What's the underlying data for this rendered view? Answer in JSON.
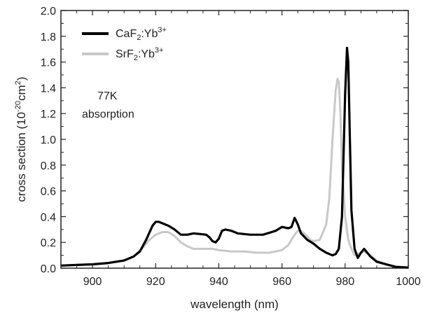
{
  "chart_data": {
    "type": "line",
    "xlabel": "wavelength (nm)",
    "ylabel_parts": {
      "pre": "cross section  (10",
      "exp": "-20",
      "mid": "cm",
      "sq": "2",
      "post": ")"
    },
    "xlim": [
      890,
      1000
    ],
    "ylim": [
      0.0,
      2.0
    ],
    "x_ticks": [
      900,
      920,
      940,
      960,
      980,
      1000
    ],
    "y_ticks": [
      0.0,
      0.2,
      0.4,
      0.6,
      0.8,
      1.0,
      1.2,
      1.4,
      1.6,
      1.8,
      2.0
    ],
    "grid": false,
    "legend_position": "top-left",
    "annotations": [
      "77K",
      "absorption"
    ],
    "series": [
      {
        "legend": {
          "base": "CaF",
          "sub": "2",
          "dopant": ":Yb",
          "sup": "3+"
        },
        "color": "#000000",
        "points": [
          [
            890,
            0.02
          ],
          [
            895,
            0.025
          ],
          [
            900,
            0.03
          ],
          [
            905,
            0.04
          ],
          [
            910,
            0.06
          ],
          [
            913,
            0.09
          ],
          [
            915,
            0.13
          ],
          [
            917,
            0.22
          ],
          [
            919,
            0.33
          ],
          [
            920,
            0.36
          ],
          [
            921,
            0.36
          ],
          [
            922,
            0.35
          ],
          [
            924,
            0.33
          ],
          [
            926,
            0.3
          ],
          [
            928,
            0.26
          ],
          [
            930,
            0.26
          ],
          [
            932,
            0.27
          ],
          [
            934,
            0.265
          ],
          [
            936,
            0.26
          ],
          [
            937,
            0.24
          ],
          [
            938,
            0.21
          ],
          [
            939,
            0.2
          ],
          [
            940,
            0.23
          ],
          [
            941,
            0.29
          ],
          [
            942,
            0.3
          ],
          [
            944,
            0.29
          ],
          [
            946,
            0.27
          ],
          [
            950,
            0.26
          ],
          [
            954,
            0.26
          ],
          [
            958,
            0.29
          ],
          [
            960,
            0.32
          ],
          [
            962,
            0.31
          ],
          [
            963,
            0.32
          ],
          [
            964,
            0.39
          ],
          [
            965,
            0.34
          ],
          [
            966,
            0.27
          ],
          [
            968,
            0.22
          ],
          [
            970,
            0.19
          ],
          [
            972,
            0.15
          ],
          [
            974,
            0.12
          ],
          [
            975,
            0.11
          ],
          [
            976,
            0.1
          ],
          [
            977,
            0.11
          ],
          [
            978,
            0.15
          ],
          [
            979,
            0.4
          ],
          [
            980,
            1.35
          ],
          [
            980.6,
            1.71
          ],
          [
            981,
            1.6
          ],
          [
            981.5,
            1.0
          ],
          [
            982,
            0.45
          ],
          [
            983,
            0.15
          ],
          [
            984,
            0.08
          ],
          [
            985,
            0.12
          ],
          [
            986,
            0.15
          ],
          [
            987,
            0.12
          ],
          [
            988,
            0.09
          ],
          [
            990,
            0.05
          ],
          [
            993,
            0.03
          ],
          [
            996,
            0.01
          ],
          [
            1000,
            0.005
          ]
        ]
      },
      {
        "legend": {
          "base": "SrF",
          "sub": "2",
          "dopant": ":Yb",
          "sup": "3+"
        },
        "color": "#c8c8c8",
        "points": [
          [
            890,
            0.02
          ],
          [
            900,
            0.03
          ],
          [
            905,
            0.04
          ],
          [
            910,
            0.06
          ],
          [
            913,
            0.09
          ],
          [
            916,
            0.16
          ],
          [
            918,
            0.22
          ],
          [
            920,
            0.26
          ],
          [
            922,
            0.28
          ],
          [
            924,
            0.28
          ],
          [
            926,
            0.25
          ],
          [
            928,
            0.2
          ],
          [
            930,
            0.17
          ],
          [
            932,
            0.15
          ],
          [
            934,
            0.15
          ],
          [
            938,
            0.15
          ],
          [
            940,
            0.14
          ],
          [
            944,
            0.13
          ],
          [
            948,
            0.13
          ],
          [
            952,
            0.12
          ],
          [
            956,
            0.12
          ],
          [
            960,
            0.14
          ],
          [
            962,
            0.18
          ],
          [
            964,
            0.26
          ],
          [
            965,
            0.29
          ],
          [
            966,
            0.29
          ],
          [
            967,
            0.27
          ],
          [
            969,
            0.22
          ],
          [
            970,
            0.21
          ],
          [
            972,
            0.22
          ],
          [
            974,
            0.34
          ],
          [
            975,
            0.55
          ],
          [
            976,
            1.0
          ],
          [
            977,
            1.38
          ],
          [
            977.6,
            1.47
          ],
          [
            978,
            1.44
          ],
          [
            978.5,
            1.2
          ],
          [
            979,
            0.8
          ],
          [
            980,
            0.4
          ],
          [
            981,
            0.22
          ],
          [
            982,
            0.15
          ],
          [
            983,
            0.1
          ],
          [
            985,
            0.12
          ],
          [
            986,
            0.13
          ],
          [
            988,
            0.1
          ],
          [
            990,
            0.06
          ],
          [
            993,
            0.03
          ],
          [
            996,
            0.015
          ],
          [
            1000,
            0.005
          ]
        ]
      }
    ]
  }
}
